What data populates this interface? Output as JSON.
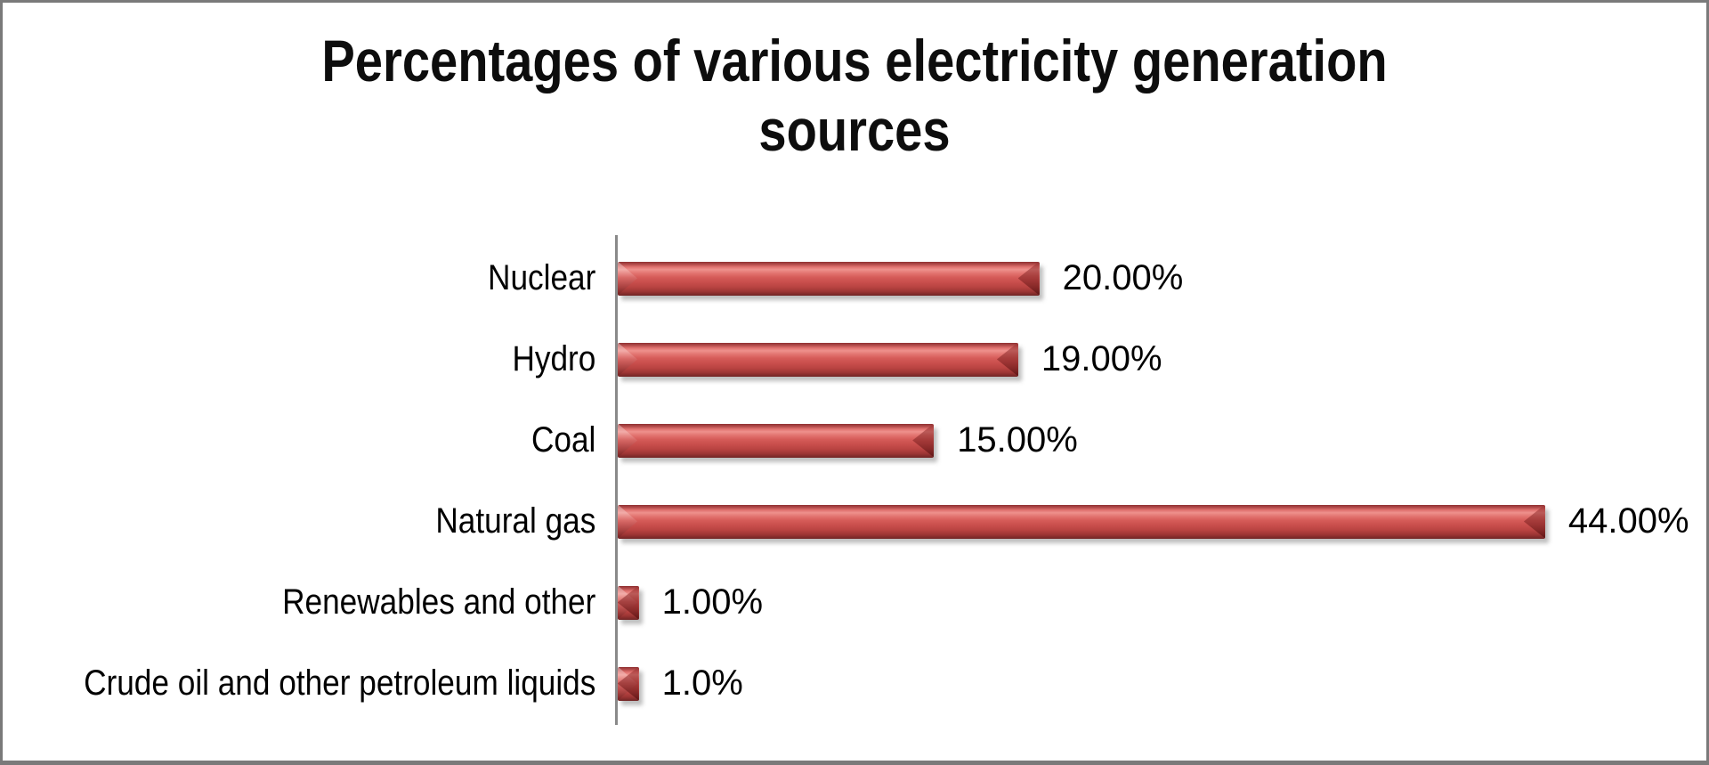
{
  "canvas": {
    "background": "#ffffff",
    "border_color": "#7a7a7a"
  },
  "title_lines": [
    "Percentages of various electricity generation",
    "sources"
  ],
  "chart_data": {
    "type": "bar",
    "orientation": "horizontal",
    "title": "Percentages of various electricity generation sources",
    "categories": [
      "Nuclear",
      "Hydro",
      "Coal",
      "Natural gas",
      "Renewables and other",
      "Crude oil and other petroleum liquids"
    ],
    "values": [
      20,
      19,
      15,
      44,
      1,
      1
    ],
    "value_labels": [
      "20.00%",
      "19.00%",
      "15.00%",
      "44.00%",
      "1.00%",
      "1.0%"
    ],
    "xlabel": "",
    "ylabel": "",
    "xlim": [
      0,
      46
    ],
    "grid": false,
    "legend": false,
    "data_labels_shown": true,
    "colors": {
      "bar_main": "#c9504d",
      "bar_highlight": "#ee918c",
      "bar_dark_edge": "#702424",
      "axis": "#8a8a8a",
      "text": "#000000",
      "title_text": "#0d0d0d"
    }
  }
}
